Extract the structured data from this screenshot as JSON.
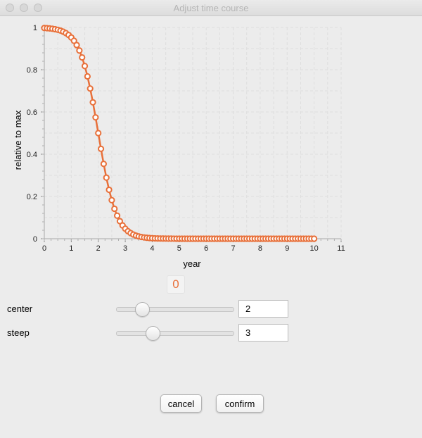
{
  "window": {
    "title": "Adjust time course"
  },
  "display_value": "0",
  "controls": {
    "center": {
      "label": "center",
      "value": "2",
      "slider_fraction": 0.22
    },
    "steep": {
      "label": "steep",
      "value": "3",
      "slider_fraction": 0.31
    }
  },
  "buttons": {
    "cancel": "cancel",
    "confirm": "confirm"
  },
  "colors": {
    "series": "#e8703a",
    "background": "#ececec",
    "grid": "#dedede"
  },
  "chart_data": {
    "type": "line",
    "title": "",
    "xlabel": "year",
    "ylabel": "relative to max",
    "xlim": [
      0,
      11
    ],
    "ylim": [
      0,
      1
    ],
    "x_ticks": [
      "0",
      "1",
      "2",
      "3",
      "4",
      "5",
      "6",
      "7",
      "8",
      "9",
      "10",
      "11"
    ],
    "y_ticks": [
      "0",
      "0.2",
      "0.4",
      "0.6",
      "0.8",
      "1"
    ],
    "grid": true,
    "series": [
      {
        "markers": "open-circle",
        "curve": "logistic decline, 1/(1+exp(steep*(x-center)))",
        "x_range": [
          0,
          10
        ],
        "step": 0.1
      }
    ]
  }
}
